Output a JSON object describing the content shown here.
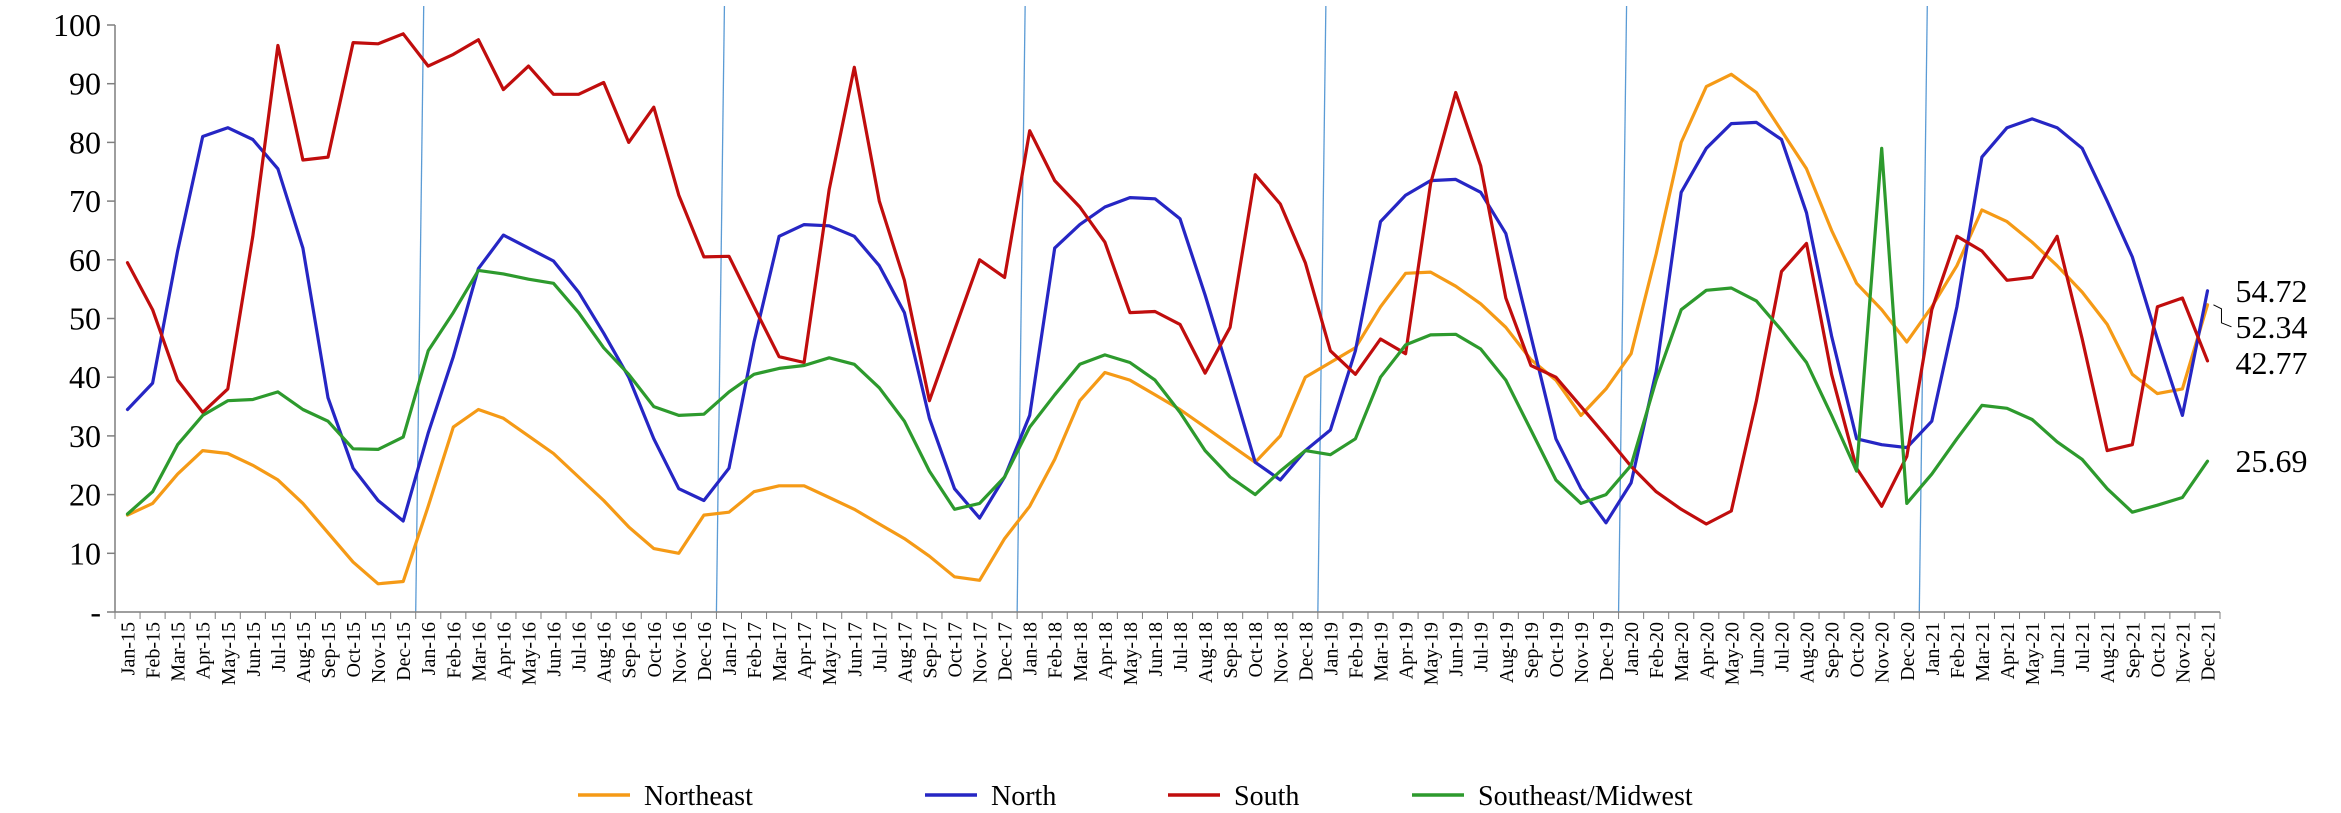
{
  "chart_data": {
    "type": "line",
    "title": "",
    "xlabel": "",
    "ylabel": "",
    "ylim": [
      0,
      100
    ],
    "y_ticks": [
      "-",
      "10",
      "20",
      "30",
      "40",
      "50",
      "60",
      "70",
      "80",
      "90",
      "100"
    ],
    "grid": false,
    "legend_position": "bottom",
    "categories": [
      "Jan-15",
      "Feb-15",
      "Mar-15",
      "Apr-15",
      "May-15",
      "Jun-15",
      "Jul-15",
      "Aug-15",
      "Sep-15",
      "Oct-15",
      "Nov-15",
      "Dec-15",
      "Jan-16",
      "Feb-16",
      "Mar-16",
      "Apr-16",
      "May-16",
      "Jun-16",
      "Jul-16",
      "Aug-16",
      "Sep-16",
      "Oct-16",
      "Nov-16",
      "Dec-16",
      "Jan-17",
      "Feb-17",
      "Mar-17",
      "Apr-17",
      "May-17",
      "Jun-17",
      "Jul-17",
      "Aug-17",
      "Sep-17",
      "Oct-17",
      "Nov-17",
      "Dec-17",
      "Jan-18",
      "Feb-18",
      "Mar-18",
      "Apr-18",
      "May-18",
      "Jun-18",
      "Jul-18",
      "Aug-18",
      "Sep-18",
      "Oct-18",
      "Nov-18",
      "Dec-18",
      "Jan-19",
      "Feb-19",
      "Mar-19",
      "Apr-19",
      "May-19",
      "Jun-19",
      "Jul-19",
      "Aug-19",
      "Sep-19",
      "Oct-19",
      "Nov-19",
      "Dec-19",
      "Jan-20",
      "Feb-20",
      "Mar-20",
      "Apr-20",
      "May-20",
      "Jun-20",
      "Jul-20",
      "Aug-20",
      "Sep-20",
      "Oct-20",
      "Nov-20",
      "Dec-20",
      "Jan-21",
      "Feb-21",
      "Mar-21",
      "Apr-21",
      "May-21",
      "Jun-21",
      "Jul-21",
      "Aug-21",
      "Sep-21",
      "Oct-21",
      "Nov-21",
      "Dec-21"
    ],
    "year_separators": [
      "Jan-16",
      "Jan-17",
      "Jan-18",
      "Jan-19",
      "Jan-20",
      "Jan-21"
    ],
    "separator_color": "#5b9bd5",
    "series": [
      {
        "name": "Northeast",
        "color": "#f59a16",
        "end_label": "52.34",
        "values": [
          16.5,
          18.5,
          23.5,
          27.5,
          27,
          25,
          22.5,
          18.5,
          13.5,
          8.5,
          4.8,
          5.2,
          18,
          31.5,
          34.5,
          33,
          30,
          27,
          23,
          19,
          14.5,
          10.8,
          10,
          16.5,
          17,
          20.5,
          21.5,
          21.5,
          19.5,
          17.5,
          15,
          12.5,
          9.5,
          6,
          5.4,
          12.5,
          18,
          26,
          36,
          40.8,
          39.5,
          37,
          34.5,
          31.5,
          28.5,
          25.5,
          30,
          40,
          42.5,
          45,
          52,
          57.7,
          57.9,
          55.5,
          52.5,
          48.5,
          43,
          39.5,
          33.5,
          38,
          44,
          61,
          80,
          89.5,
          91.6,
          88.5,
          82,
          75.5,
          65,
          56,
          51.5,
          46,
          52,
          59,
          68.5,
          66.5,
          63,
          59,
          54.5,
          49,
          40.5,
          37.2,
          38,
          52.34
        ]
      },
      {
        "name": "North",
        "color": "#2626c4",
        "end_label": "54.72",
        "values": [
          34.5,
          39,
          61.5,
          81,
          82.5,
          80.5,
          75.5,
          62,
          36.5,
          24.5,
          19,
          15.5,
          30.5,
          43.5,
          58.5,
          64.2,
          62,
          59.8,
          54.5,
          47.5,
          40,
          29.5,
          21,
          19,
          24.5,
          46,
          64,
          66,
          65.8,
          64,
          59,
          51,
          33,
          21,
          16,
          23,
          33.5,
          62,
          66,
          69,
          70.6,
          70.4,
          67,
          54,
          40,
          25.5,
          22.5,
          27.5,
          31,
          44.5,
          66.5,
          71,
          73.5,
          73.7,
          71.5,
          64.5,
          47,
          29.5,
          21,
          15.2,
          22,
          41,
          71.5,
          79,
          83.2,
          83.4,
          80.5,
          68,
          47,
          29.5,
          28.5,
          28,
          32.5,
          52,
          77.5,
          82.5,
          84,
          82.5,
          79,
          70,
          60.5,
          46.5,
          33.5,
          54.72
        ]
      },
      {
        "name": "South",
        "color": "#c00d0d",
        "end_label": "42.77",
        "values": [
          59.5,
          51.5,
          39.5,
          34,
          38,
          64,
          96.5,
          77,
          77.5,
          97,
          96.8,
          98.5,
          93,
          95,
          97.5,
          89,
          93,
          88.2,
          88.2,
          90.2,
          80,
          86,
          71,
          60.5,
          60.6,
          52,
          43.5,
          42.5,
          72,
          92.8,
          70,
          56.5,
          36,
          48,
          60,
          57,
          82,
          73.5,
          69,
          63,
          51,
          51.2,
          49,
          40.7,
          48.5,
          74.5,
          69.5,
          59.5,
          44.5,
          40.5,
          46.5,
          44,
          73,
          88.5,
          76,
          53.5,
          42,
          40,
          35,
          30,
          24.8,
          20.5,
          17.5,
          15,
          17.2,
          36,
          58,
          62.8,
          40.5,
          24.5,
          18,
          26.5,
          51.5,
          64,
          61.5,
          56.5,
          57,
          64,
          46.5,
          27.5,
          28.5,
          52,
          53.5,
          42.77
        ]
      },
      {
        "name": "Southeast/Midwest",
        "color": "#2d9a2d",
        "end_label": "25.69",
        "values": [
          16.7,
          20.5,
          28.5,
          33.5,
          36,
          36.2,
          37.5,
          34.5,
          32.5,
          27.8,
          27.7,
          29.8,
          44.5,
          51,
          58.2,
          57.6,
          56.7,
          56,
          51,
          45,
          40.5,
          35,
          33.5,
          33.7,
          37.5,
          40.5,
          41.5,
          42,
          43.3,
          42.2,
          38.2,
          32.5,
          24,
          17.5,
          18.5,
          23,
          31.5,
          37,
          42.2,
          43.8,
          42.5,
          39.5,
          34,
          27.5,
          23,
          20,
          24,
          27.5,
          26.8,
          29.5,
          40,
          45.5,
          47.2,
          47.3,
          44.8,
          39.5,
          31,
          22.5,
          18.5,
          20,
          25,
          39.5,
          51.5,
          54.8,
          55.2,
          53,
          48,
          42.5,
          33.5,
          24,
          79,
          18.5,
          23.5,
          29.5,
          35.2,
          34.7,
          32.8,
          29,
          26,
          21,
          17,
          18.2,
          19.5,
          25.69
        ]
      }
    ]
  }
}
